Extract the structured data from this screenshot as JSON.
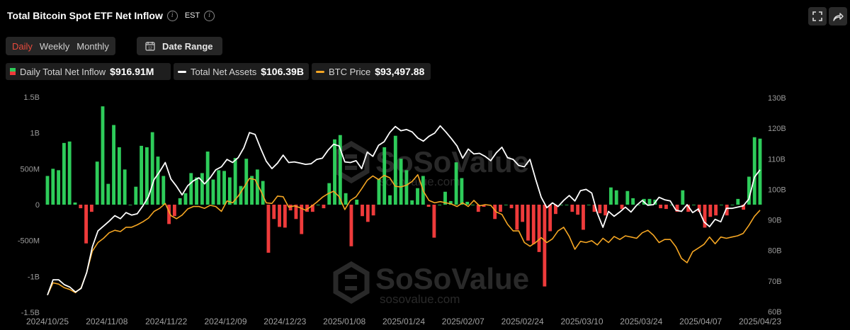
{
  "header": {
    "title": "Total Bitcoin Spot ETF Net Inflow",
    "timezone": "EST"
  },
  "tabs": [
    {
      "label": "Daily",
      "active": true
    },
    {
      "label": "Weekly",
      "active": false
    },
    {
      "label": "Monthly",
      "active": false
    }
  ],
  "date_range_label": "Date Range",
  "legend": [
    {
      "label": "Daily Total Net Inflow",
      "value": "$916.91M"
    },
    {
      "label": "Total Net Assets",
      "value": "$106.39B"
    },
    {
      "label": "BTC Price",
      "value": "$93,497.88"
    }
  ],
  "colors": {
    "positive": "#2ecc5a",
    "negative": "#ee3b3b",
    "assets_line": "#ffffff",
    "btc_line": "#f5a623",
    "active_tab": "#e84a3c"
  },
  "watermark": {
    "brand": "SoSoValue",
    "site": "sosovalue.com"
  },
  "chart_data": {
    "type": "bar",
    "x_tick_labels": [
      "2024/10/25",
      "2024/11/08",
      "2024/11/22",
      "2024/12/09",
      "2024/12/23",
      "2025/01/08",
      "2025/01/24",
      "2025/02/07",
      "2025/02/24",
      "2025/03/10",
      "2025/03/24",
      "2025/04/07",
      "2025/04/23"
    ],
    "y_left_ticks": [
      "1.5B",
      "1B",
      "500M",
      "0",
      "-500M",
      "-1B",
      "-1.5B"
    ],
    "y_left_range": [
      -1.5,
      1.5
    ],
    "y_right_ticks": [
      "130B",
      "120B",
      "110B",
      "100B",
      "90B",
      "80B",
      "70B",
      "60B"
    ],
    "y_right_range": [
      60,
      130
    ],
    "grid": false,
    "series": [
      {
        "name": "Daily Total Net Inflow",
        "unit": "B",
        "values": [
          0.4,
          0.5,
          0.48,
          0.86,
          0.88,
          0.03,
          -0.05,
          -0.54,
          -0.1,
          0.6,
          1.37,
          0.29,
          1.11,
          0.8,
          0.49,
          0.0,
          0.25,
          0.82,
          0.8,
          1.01,
          0.67,
          0.4,
          -0.27,
          -0.16,
          0.09,
          0.16,
          0.44,
          0.38,
          0.44,
          0.74,
          0.35,
          0.48,
          0.47,
          0.38,
          0.65,
          0.26,
          0.64,
          0.4,
          0.49,
          0.33,
          -0.67,
          -0.2,
          -0.31,
          -0.32,
          -0.08,
          -0.2,
          -0.41,
          -0.1,
          -0.1,
          0.0,
          -0.05,
          0.3,
          0.91,
          0.97,
          0.16,
          -0.58,
          0.07,
          -0.16,
          -0.24,
          -0.15,
          0.36,
          0.8,
          0.13,
          0.96,
          0.64,
          0.48,
          0.06,
          0.23,
          0.4,
          -0.03,
          -0.46,
          0.0,
          0.18,
          0.05,
          0.59,
          0.37,
          0.04,
          0.0,
          -0.1,
          -0.03,
          0.0,
          -0.2,
          -0.1,
          0.0,
          -0.05,
          -0.35,
          -0.24,
          -0.5,
          -0.55,
          -0.66,
          -1.14,
          -0.37,
          -0.13,
          0.0,
          0.0,
          -0.1,
          -0.14,
          -0.35,
          0.0,
          -0.1,
          -0.12,
          -0.15,
          0.24,
          0.2,
          -0.06,
          0.19,
          0.09,
          0.0,
          0.08,
          0.08,
          0.07,
          -0.05,
          -0.06,
          0.0,
          -0.1,
          0.2,
          -0.1,
          0.0,
          -0.1,
          -0.32,
          -0.17,
          -0.15,
          0.0,
          -0.15,
          0.0,
          0.08,
          -0.07,
          0.39,
          0.94,
          0.92
        ]
      },
      {
        "name": "Total Net Assets",
        "unit": "B",
        "values": [
          65.4,
          70.4,
          70.4,
          68.8,
          68.0,
          66.4,
          67.6,
          72.8,
          81.2,
          86.4,
          88.0,
          89.6,
          91.4,
          90.4,
          92.4,
          91.6,
          92.0,
          94.6,
          97.6,
          103.2,
          105.8,
          108.8,
          103.4,
          101.0,
          98.2,
          101.2,
          102.8,
          103.8,
          101.8,
          103.8,
          106.4,
          107.4,
          109.8,
          108.8,
          110.4,
          113.6,
          118.6,
          118.0,
          113.4,
          109.2,
          106.8,
          108.6,
          111.2,
          108.8,
          109.0,
          108.6,
          108.2,
          108.4,
          109.8,
          110.2,
          112.8,
          114.8,
          114.2,
          109.0,
          108.8,
          109.4,
          106.8,
          112.2,
          110.8,
          114.4,
          115.6,
          118.6,
          120.6,
          119.2,
          119.6,
          118.8,
          116.8,
          115.8,
          117.4,
          118.4,
          120.8,
          118.8,
          116.6,
          114.2,
          110.2,
          113.2,
          111.6,
          111.8,
          110.8,
          109.4,
          112.0,
          113.8,
          110.4,
          109.8,
          107.8,
          107.4,
          109.8,
          103.4,
          97.4,
          94.0,
          95.6,
          94.4,
          96.4,
          98.0,
          96.2,
          99.6,
          100.0,
          98.8,
          92.2,
          87.6,
          92.8,
          91.2,
          92.6,
          94.2,
          92.6,
          94.8,
          96.4,
          94.8,
          95.0,
          97.4,
          96.6,
          96.2,
          93.2,
          92.8,
          95.0,
          92.4,
          93.6,
          89.4,
          87.8,
          90.2,
          89.4,
          93.8,
          93.8,
          94.2,
          94.6,
          96.8,
          104.0,
          106.4
        ]
      },
      {
        "name": "BTC Price",
        "unit": "$",
        "values": [
          65.4,
          69.4,
          69.0,
          67.8,
          67.2,
          66.2,
          67.8,
          72.8,
          79.8,
          82.6,
          84.0,
          85.8,
          86.6,
          86.2,
          87.6,
          87.6,
          88.4,
          89.4,
          90.6,
          92.8,
          93.8,
          95.4,
          91.4,
          90.4,
          91.6,
          93.6,
          94.4,
          94.4,
          93.8,
          94.8,
          94.4,
          92.8,
          96.2,
          95.6,
          97.8,
          100.6,
          103.6,
          103.2,
          99.6,
          95.6,
          95.4,
          97.8,
          97.6,
          94.2,
          94.6,
          94.0,
          93.2,
          94.4,
          95.8,
          97.4,
          98.6,
          99.4,
          97.6,
          93.4,
          96.4,
          97.6,
          100.2,
          103.0,
          104.4,
          103.2,
          104.6,
          103.8,
          101.0,
          100.8,
          101.4,
          102.6,
          104.8,
          99.4,
          96.4,
          95.6,
          96.0,
          95.6,
          95.2,
          94.4,
          95.6,
          94.4,
          96.4,
          94.6,
          95.0,
          94.8,
          92.6,
          91.8,
          88.6,
          86.4,
          86.4,
          82.6,
          81.4,
          82.6,
          84.2,
          82.6,
          83.8,
          86.4,
          87.6,
          84.6,
          80.4,
          83.0,
          82.6,
          83.2,
          81.8,
          84.0,
          82.6,
          84.6,
          83.6,
          84.8,
          84.4,
          84.0,
          85.8,
          86.6,
          85.0,
          82.6,
          83.6,
          83.6,
          81.2,
          77.4,
          76.0,
          79.6,
          80.8,
          82.0,
          84.4,
          82.2,
          84.4,
          84.0,
          84.4,
          84.8,
          85.6,
          88.2,
          91.2,
          93.2
        ]
      }
    ]
  }
}
